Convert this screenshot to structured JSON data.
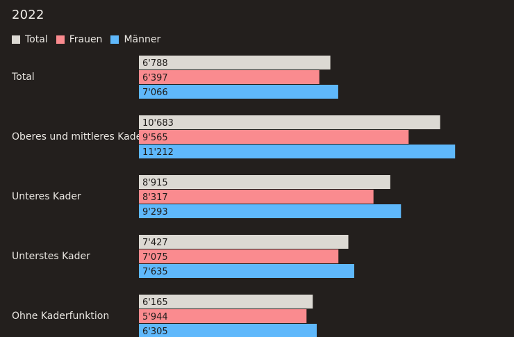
{
  "chart_data": {
    "type": "bar",
    "orientation": "horizontal",
    "title": "2022",
    "categories": [
      "Total",
      "Oberes und mittleres Kader",
      "Unteres Kader",
      "Unterstes Kader",
      "Ohne Kaderfunktion"
    ],
    "series": [
      {
        "name": "Total",
        "color": "#dcd9d3",
        "values": [
          6788,
          10683,
          8915,
          7427,
          6165
        ],
        "labels": [
          "6'788",
          "10'683",
          "8'915",
          "7'427",
          "6'165"
        ]
      },
      {
        "name": "Frauen",
        "color": "#fa8b8f",
        "values": [
          6397,
          9565,
          8317,
          7075,
          5944
        ],
        "labels": [
          "6'397",
          "9'565",
          "8'317",
          "7'075",
          "5'944"
        ]
      },
      {
        "name": "Männer",
        "color": "#5fb8fb",
        "values": [
          7066,
          11212,
          9293,
          7635,
          6305
        ],
        "labels": [
          "7'066",
          "11'212",
          "9'293",
          "7'635",
          "6'305"
        ]
      }
    ],
    "xlim": [
      0,
      12000
    ],
    "legend_position": "top-left",
    "grid": false
  }
}
